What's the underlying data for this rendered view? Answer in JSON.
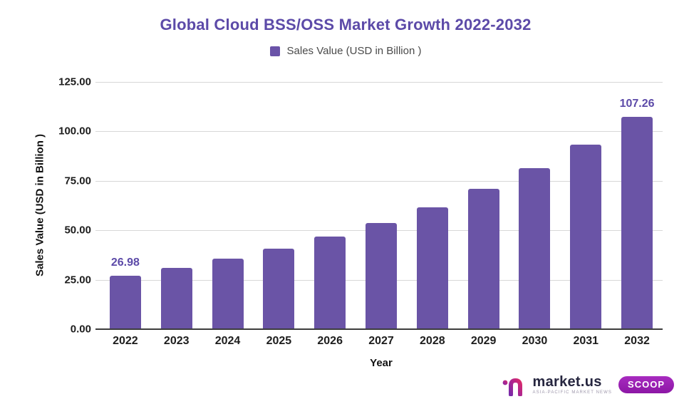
{
  "chart_data": {
    "type": "bar",
    "title": "Global Cloud BSS/OSS Market Growth 2022-2032",
    "categories": [
      "2022",
      "2023",
      "2024",
      "2025",
      "2026",
      "2027",
      "2028",
      "2029",
      "2030",
      "2031",
      "2032"
    ],
    "values": [
      26.98,
      30.9,
      35.6,
      40.8,
      46.9,
      53.8,
      61.7,
      70.9,
      81.4,
      93.4,
      107.26
    ],
    "value_labels": {
      "0": "26.98",
      "10": "107.26"
    },
    "xlabel": "Year",
    "ylabel": "Sales Value (USD in Billion )",
    "legend": [
      "Sales Value (USD in Billion )"
    ],
    "legend_position": "top",
    "ylim": [
      0,
      125
    ],
    "yticks": [
      0,
      25,
      50,
      75,
      100,
      125
    ],
    "grid": true,
    "bar_color": "#6a54a6"
  },
  "colors": {
    "title": "#5c4aa8",
    "bar": "#6a54a6",
    "value_label": "#5c4aa8",
    "gridline": "#d7d7d7",
    "axis_line": "#3d3d3d",
    "tick_label": "#1d1d1d",
    "legend_text": "#4a4a4a",
    "badge": "#9c1fad",
    "brand_text": "#26263f"
  },
  "footer": {
    "brand": "market.us",
    "tagline": "ASIA-PACIFIC MARKET NEWS",
    "badge": "SCOOP"
  },
  "icons": {
    "legend_swatch": "square-swatch",
    "brand_mark": "marketus-m-logo"
  }
}
